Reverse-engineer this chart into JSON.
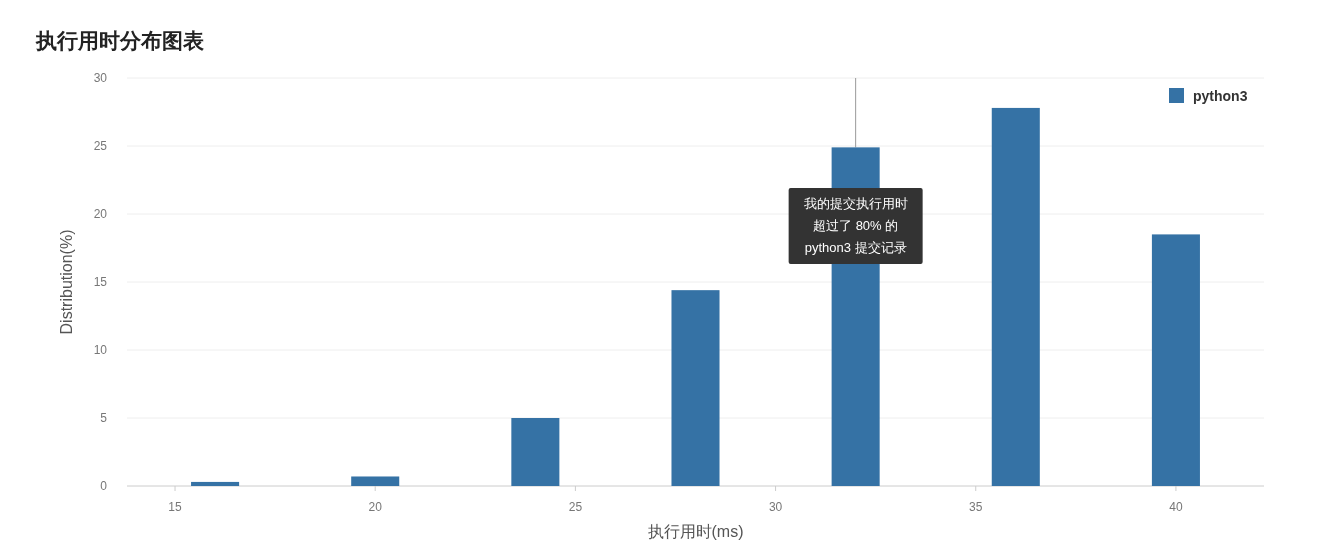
{
  "chart_data": {
    "type": "bar",
    "title": "执行用时分布图表",
    "xlabel": "执行用时(ms)",
    "ylabel": "Distribution(%)",
    "x": [
      16,
      20,
      24,
      28,
      32,
      36,
      40
    ],
    "series": [
      {
        "name": "python3",
        "color": "#3572a5",
        "values": [
          0.3,
          0.7,
          5.0,
          14.4,
          24.9,
          27.8,
          18.5
        ]
      }
    ],
    "xlim": [
      13.8,
      42.2
    ],
    "xticks": [
      15,
      20,
      25,
      30,
      35,
      40
    ],
    "ylim": [
      0,
      30
    ],
    "yticks": [
      0,
      5,
      10,
      15,
      20,
      25,
      30
    ],
    "grid": "y",
    "legend": "top right",
    "ref_lines": [
      {
        "axis": "x",
        "value": 32,
        "color": "#999999"
      }
    ],
    "annotations": [
      "我的提交执行用时超过了 80% 的 python3 提交记录"
    ]
  }
}
